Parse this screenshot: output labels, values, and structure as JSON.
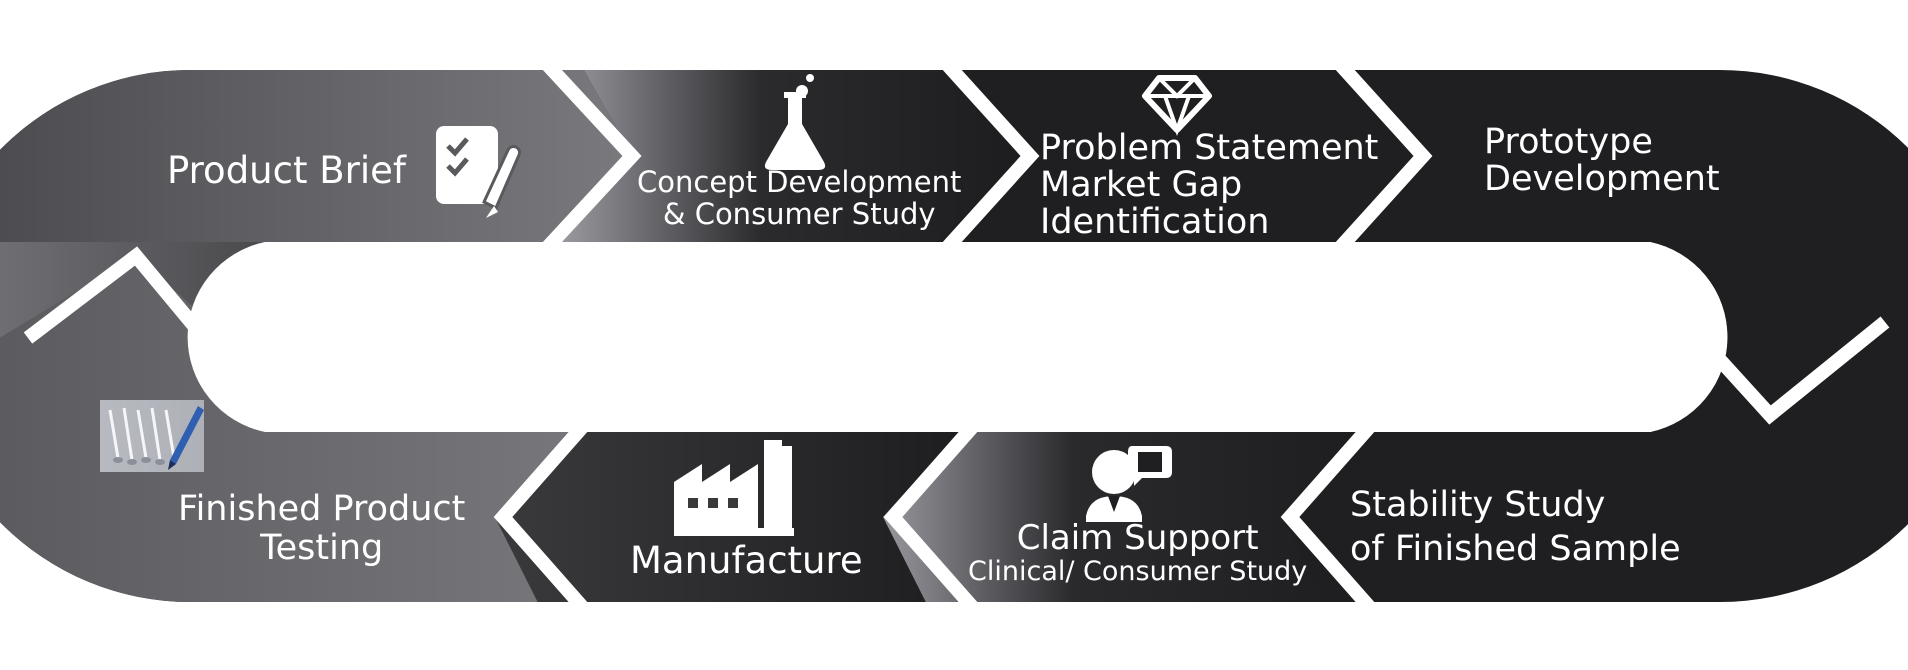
{
  "steps": [
    {
      "id": "product-brief",
      "lines": [
        "Product Brief"
      ],
      "icon": "checklist-pen-icon"
    },
    {
      "id": "concept-development",
      "lines": [
        "Concept Development",
        "& Consumer Study"
      ],
      "icon": "flask-icon"
    },
    {
      "id": "problem-statement",
      "lines": [
        "Problem Statement",
        "Market Gap",
        "Identification"
      ],
      "icon": "diamond-icon"
    },
    {
      "id": "prototype-development",
      "lines": [
        "Prototype",
        "Development"
      ],
      "icon": ""
    },
    {
      "id": "stability-study",
      "lines": [
        "Stability Study",
        "of Finished Sample"
      ],
      "icon": ""
    },
    {
      "id": "claim-support",
      "lines": [
        "Claim Support",
        "Clinical/ Consumer Study"
      ],
      "icon": "speaker-bubble-icon"
    },
    {
      "id": "manufacture",
      "lines": [
        "Manufacture"
      ],
      "icon": "factory-icon"
    },
    {
      "id": "finished-product-testing",
      "lines": [
        "Finished Product",
        "Testing"
      ],
      "icon": "test-tubes-photo-icon"
    }
  ],
  "colors": {
    "dark": "#1f1e20",
    "mid": "#4b4a4d",
    "light": "#8c8b90",
    "text": "#ffffff",
    "divider": "#ffffff"
  }
}
